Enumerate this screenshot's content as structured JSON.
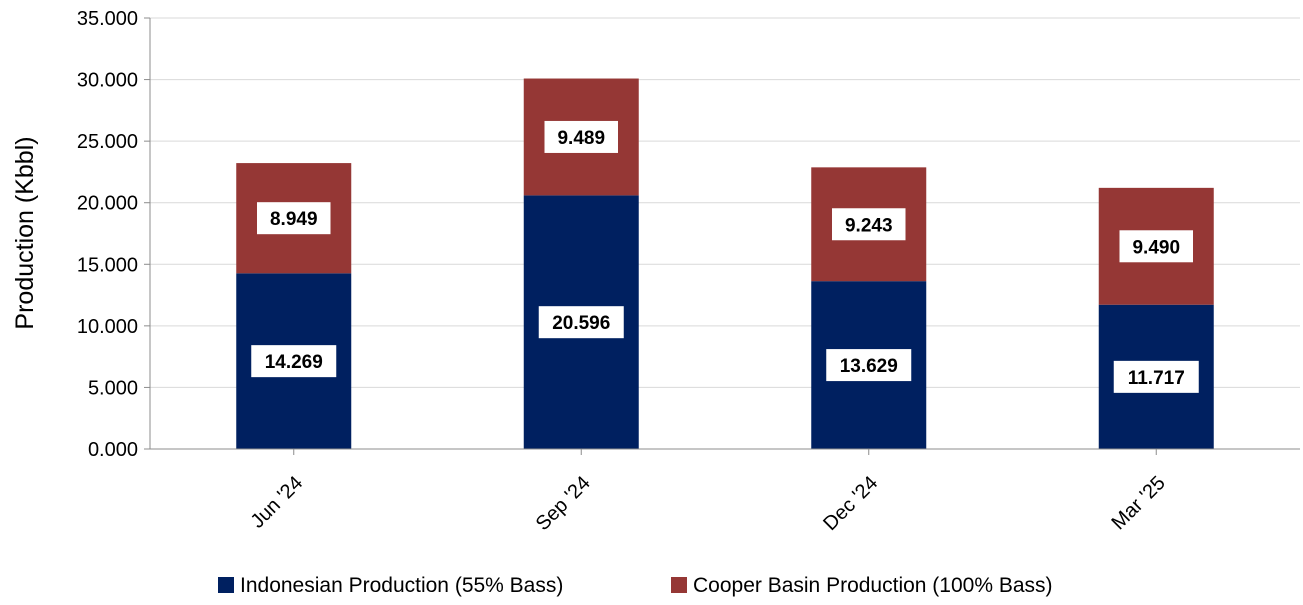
{
  "chart_data": {
    "type": "bar",
    "stacked": true,
    "categories": [
      "Jun '24",
      "Sep '24",
      "Dec '24",
      "Mar '25"
    ],
    "series": [
      {
        "name": "Indonesian Production (55% Bass)",
        "values": [
          14.269,
          20.596,
          13.629,
          11.717
        ],
        "color": "#002060"
      },
      {
        "name": "Cooper Basin Production (100% Bass)",
        "values": [
          8.949,
          9.489,
          9.243,
          9.49
        ],
        "color": "#953735"
      }
    ],
    "data_labels": [
      [
        "14.269",
        "20.596",
        "13.629",
        "11.717"
      ],
      [
        "8.949",
        "9.489",
        "9.243",
        "9.490"
      ]
    ],
    "ylabel": "Production (Kbbl)",
    "ylim": [
      0,
      35
    ],
    "yticks": [
      "0.000",
      "5.000",
      "10.000",
      "15.000",
      "20.000",
      "25.000",
      "30.000",
      "35.000"
    ],
    "grid": true,
    "legend_position": "bottom"
  }
}
